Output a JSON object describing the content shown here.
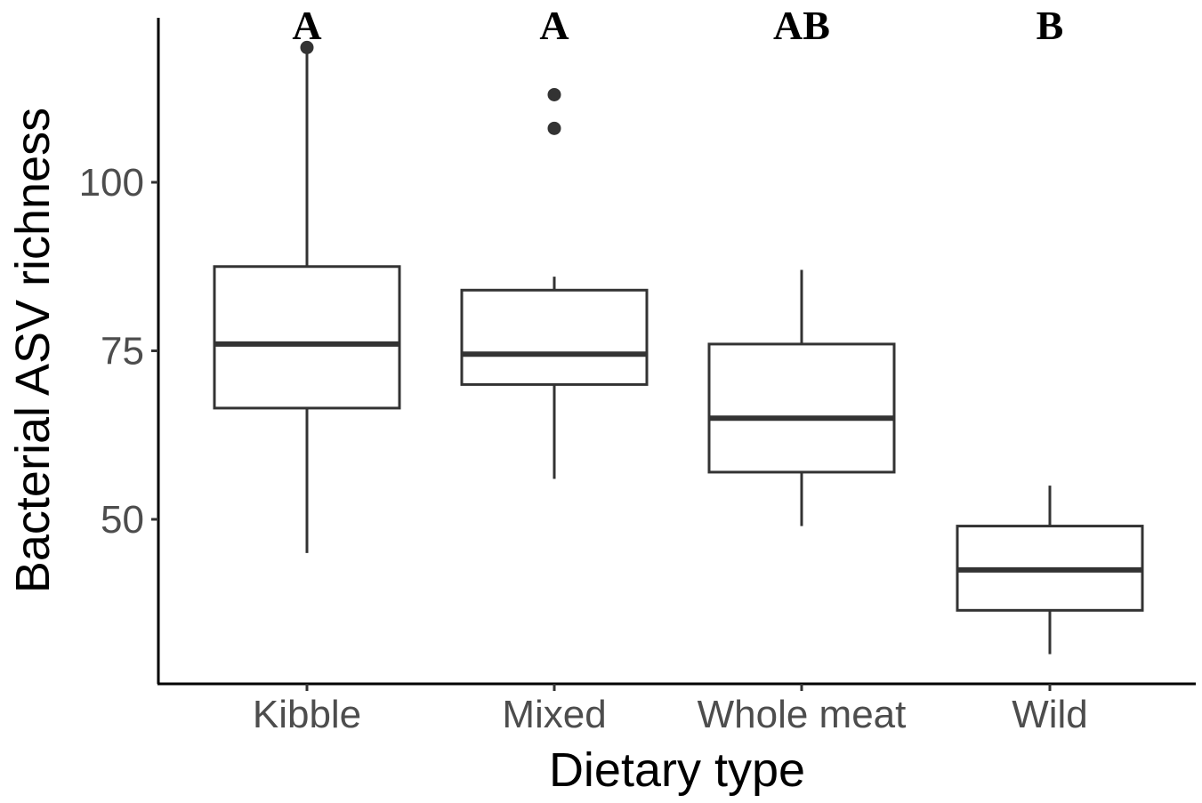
{
  "chart_data": {
    "type": "boxplot",
    "xlabel": "Dietary type",
    "ylabel": "Bacterial ASV richness",
    "categories": [
      "Kibble",
      "Mixed",
      "Whole meat",
      "Wild"
    ],
    "yticks": [
      50,
      75,
      100
    ],
    "ylim": [
      25,
      125
    ],
    "grid": false,
    "boxes": [
      {
        "category": "Kibble",
        "whisker_low": 45,
        "q1": 66.5,
        "median": 76,
        "q3": 87.5,
        "whisker_high": 120,
        "outliers": [
          120
        ],
        "significance": "A"
      },
      {
        "category": "Mixed",
        "whisker_low": 56,
        "q1": 70,
        "median": 74.5,
        "q3": 84,
        "whisker_high": 86,
        "outliers": [
          113,
          108
        ],
        "significance": "A"
      },
      {
        "category": "Whole meat",
        "whisker_low": 49,
        "q1": 57,
        "median": 65,
        "q3": 76,
        "whisker_high": 87,
        "outliers": [],
        "significance": "AB"
      },
      {
        "category": "Wild",
        "whisker_low": 30,
        "q1": 36.5,
        "median": 42.5,
        "q3": 49,
        "whisker_high": 55,
        "outliers": [],
        "significance": "B"
      }
    ],
    "colors": {
      "box_stroke": "#333333",
      "axis": "#000000",
      "tick_label": "#4d4d4d"
    }
  }
}
